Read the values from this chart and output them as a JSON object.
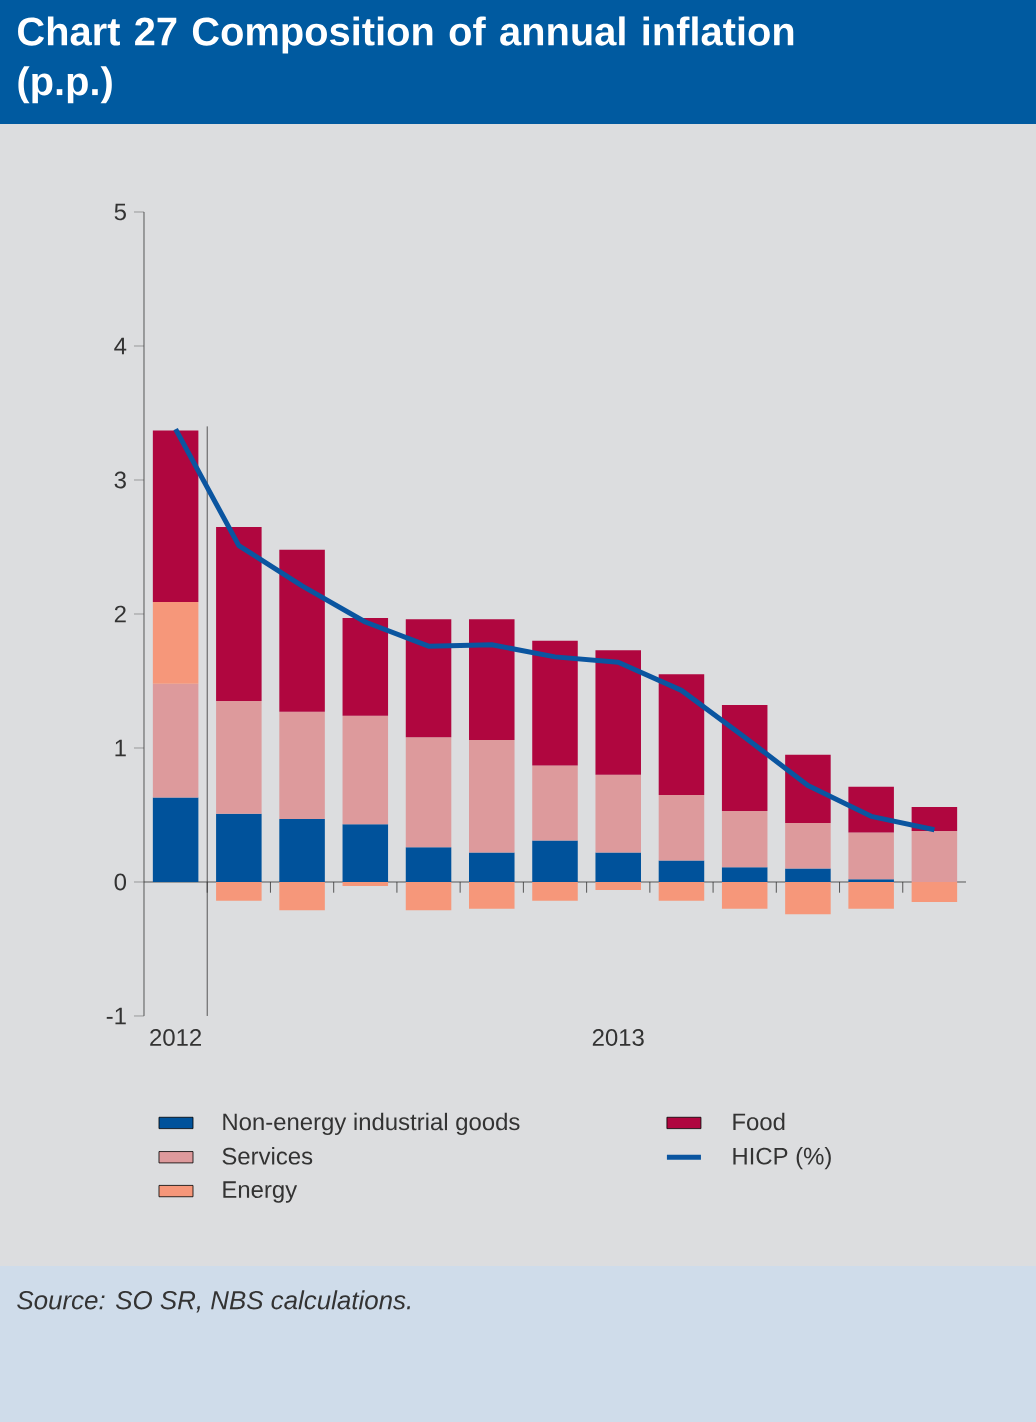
{
  "chart_data": {
    "type": "bar",
    "title": "Chart 27 Composition of annual inflation (p.p.)",
    "annotations": [
      "Source: SO SR, NBS calculations."
    ],
    "stacked": true,
    "legend": "bottom",
    "categories": [
      "2012",
      null,
      null,
      null,
      null,
      null,
      null,
      "2013",
      null,
      null,
      null,
      null,
      null
    ],
    "ylim": [
      -1,
      5
    ],
    "yticks": [
      -1,
      0,
      1,
      2,
      3,
      4,
      5
    ],
    "series": [
      {
        "name": "Non-energy industrial goods",
        "color": "#00529b",
        "values": [
          0.63,
          0.51,
          0.47,
          0.43,
          0.26,
          0.22,
          0.31,
          0.22,
          0.16,
          0.11,
          0.1,
          0.02,
          0.0
        ]
      },
      {
        "name": "Services",
        "color": "#dd9a9c",
        "values": [
          0.85,
          0.84,
          0.8,
          0.81,
          0.82,
          0.84,
          0.56,
          0.58,
          0.49,
          0.42,
          0.34,
          0.35,
          0.38
        ]
      },
      {
        "name": "Energy",
        "color": "#f6977a",
        "values": [
          0.61,
          -0.14,
          -0.21,
          -0.03,
          -0.21,
          -0.2,
          -0.14,
          -0.06,
          -0.14,
          -0.2,
          -0.24,
          -0.2,
          -0.15
        ]
      },
      {
        "name": "Food",
        "color": "#b0063f",
        "values": [
          1.28,
          1.3,
          1.21,
          0.73,
          0.88,
          0.9,
          0.93,
          0.93,
          0.9,
          0.79,
          0.51,
          0.34,
          0.18
        ]
      },
      {
        "name": "HICP (%)",
        "type": "line",
        "color": "#0a55a0",
        "values": [
          3.38,
          2.51,
          2.21,
          1.94,
          1.76,
          1.77,
          1.68,
          1.64,
          1.43,
          1.08,
          0.72,
          0.49,
          0.39
        ]
      }
    ]
  }
}
